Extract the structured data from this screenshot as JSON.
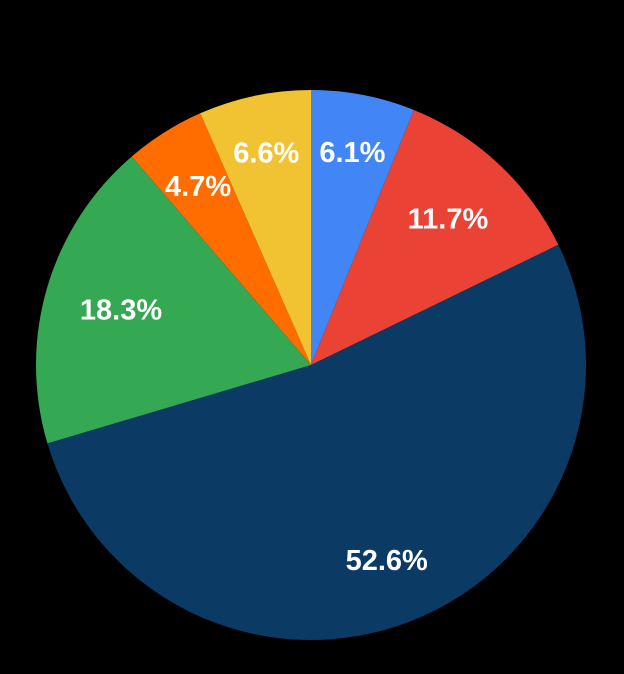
{
  "background_color": "#000000",
  "chart_data": {
    "type": "pie",
    "title": "",
    "legend_position": "none",
    "start_angle_deg": 0,
    "direction": "clockwise",
    "slices": [
      {
        "name": "blue",
        "label": "6.1%",
        "value": 6.1,
        "color": "#4285F4"
      },
      {
        "name": "red",
        "label": "11.7%",
        "value": 11.7,
        "color": "#EA4335"
      },
      {
        "name": "dark-navy",
        "label": "52.6%",
        "value": 52.6,
        "color": "#0B3A64"
      },
      {
        "name": "green",
        "label": "18.3%",
        "value": 18.3,
        "color": "#34A853"
      },
      {
        "name": "orange",
        "label": "4.7%",
        "value": 4.7,
        "color": "#FF6D01"
      },
      {
        "name": "yellow",
        "label": "6.6%",
        "value": 6.6,
        "color": "#F1C232"
      }
    ],
    "label_style": {
      "color": "#FFFFFF",
      "font_weight": "bold"
    },
    "label_radius_factors": [
      0.79,
      0.73,
      0.76,
      0.72,
      0.77,
      0.79
    ]
  }
}
